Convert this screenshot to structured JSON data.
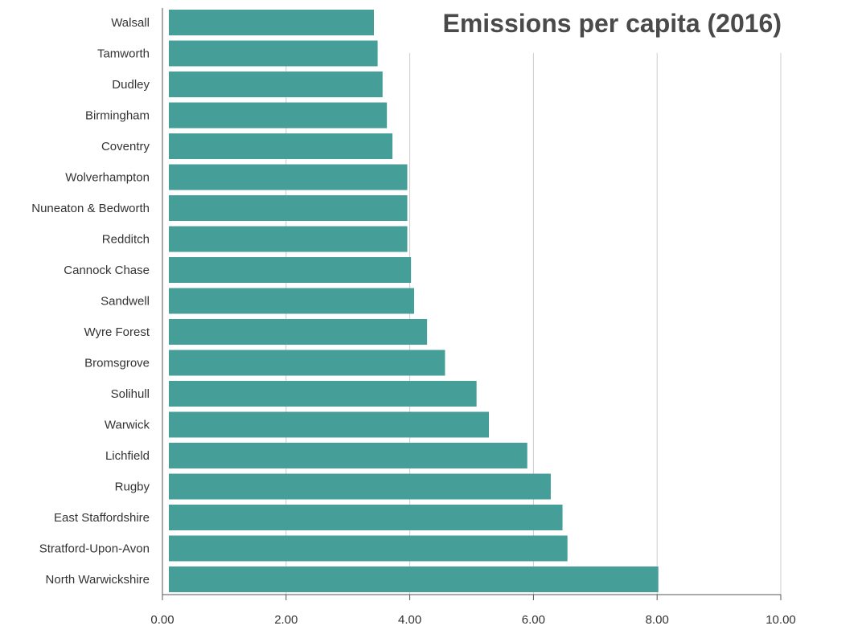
{
  "chart_data": {
    "type": "bar",
    "orientation": "horizontal",
    "title": "Emissions per capita (2016)",
    "xlabel": "",
    "ylabel": "",
    "categories": [
      "Walsall",
      "Tamworth",
      "Dudley",
      "Birmingham",
      "Coventry",
      "Wolverhampton",
      "Nuneaton & Bedworth",
      "Redditch",
      "Cannock Chase",
      "Sandwell",
      "Wyre Forest",
      "Bromsgrove",
      "Solihull",
      "Warwick",
      "Lichfield",
      "Rugby",
      "East Staffordshire",
      "Stratford-Upon-Avon",
      "North Warwickshire"
    ],
    "values": [
      3.42,
      3.48,
      3.56,
      3.63,
      3.72,
      3.96,
      3.96,
      3.96,
      4.02,
      4.07,
      4.28,
      4.57,
      5.08,
      5.28,
      5.9,
      6.28,
      6.47,
      6.55,
      8.02
    ],
    "xlim": [
      0,
      10
    ],
    "xticks": [
      "0.00",
      "2.00",
      "4.00",
      "6.00",
      "8.00",
      "10.00"
    ],
    "xtick_values": [
      0,
      2,
      4,
      6,
      8,
      10
    ],
    "grid": "vertical",
    "legend": "none",
    "bar_color": "#459e98",
    "grid_color": "#cccccc",
    "axis_color": "#555555"
  }
}
